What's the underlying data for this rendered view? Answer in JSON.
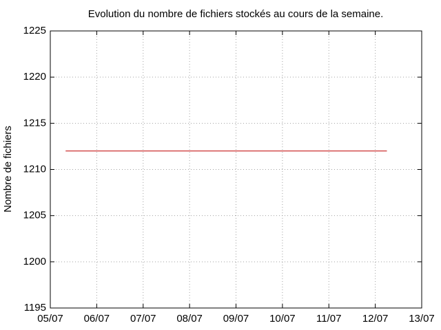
{
  "chart_data": {
    "type": "line",
    "title": "Evolution du nombre de fichiers stockés au cours de la semaine.",
    "y_label": "Nombre de fichiers",
    "x": [
      0.33,
      7.25
    ],
    "series": [
      {
        "color": "#c00000",
        "values": [
          1212,
          1212
        ]
      }
    ],
    "xlim": [
      0,
      8
    ],
    "xticks": [
      {
        "value": 0,
        "label": "05/07"
      },
      {
        "value": 1,
        "label": "06/07"
      },
      {
        "value": 2,
        "label": "07/07"
      },
      {
        "value": 3,
        "label": "08/07"
      },
      {
        "value": 4,
        "label": "09/07"
      },
      {
        "value": 5,
        "label": "10/07"
      },
      {
        "value": 6,
        "label": "11/07"
      },
      {
        "value": 7,
        "label": "12/07"
      },
      {
        "value": 8,
        "label": "13/07"
      }
    ],
    "ylim": [
      1195,
      1225
    ],
    "yticks": [
      1195,
      1200,
      1205,
      1210,
      1215,
      1220,
      1225
    ],
    "grid": true
  }
}
